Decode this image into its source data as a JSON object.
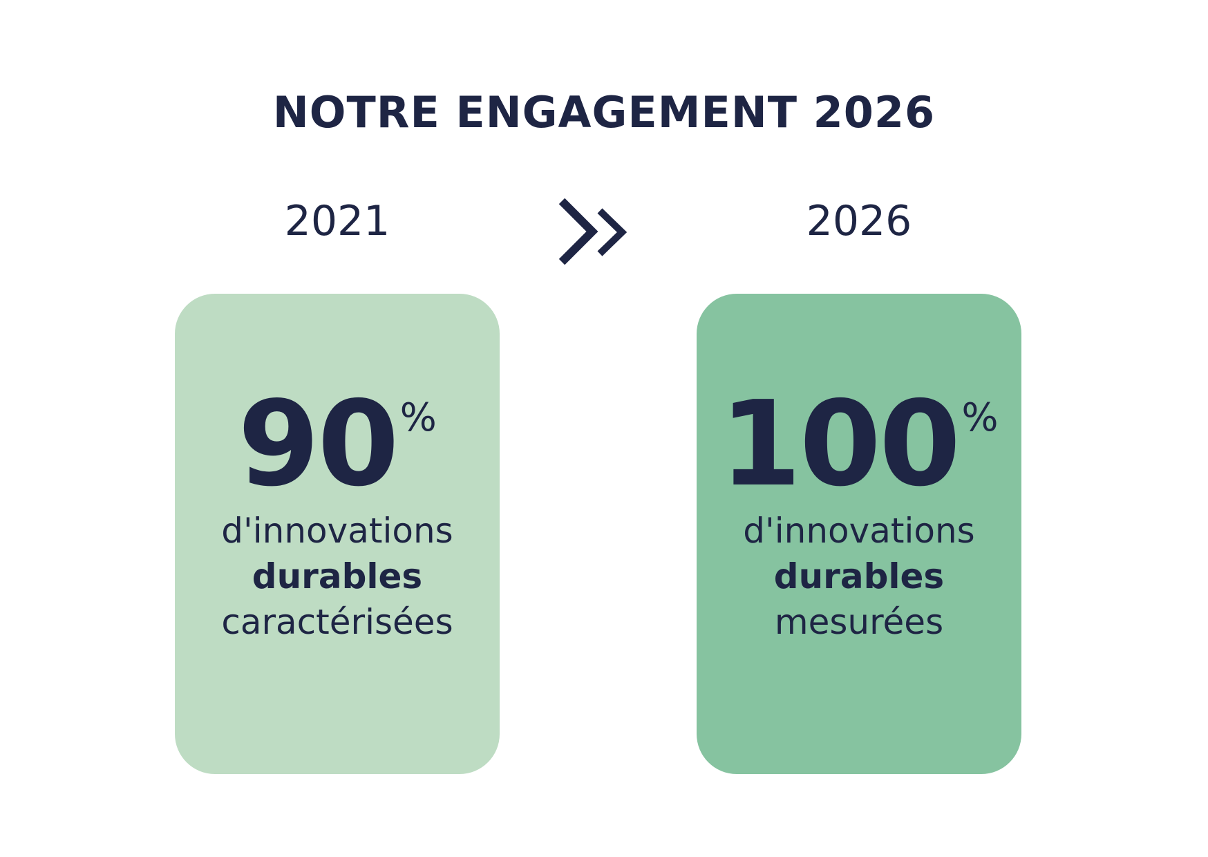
{
  "title": "NOTRE ENGAGEMENT 2026",
  "colors": {
    "text": "#1e2544",
    "card_2021": "#bedcc3",
    "card_2026": "#86c3a0"
  },
  "arrow_icon": "double-chevron-right-icon",
  "left": {
    "year": "2021",
    "value": "90",
    "unit": "%",
    "line1": "d'innovations",
    "line2": "durables",
    "line3": "caractérisées"
  },
  "right": {
    "year": "2026",
    "value": "100",
    "unit": "%",
    "line1": "d'innovations",
    "line2": "durables",
    "line3": "mesurées"
  }
}
